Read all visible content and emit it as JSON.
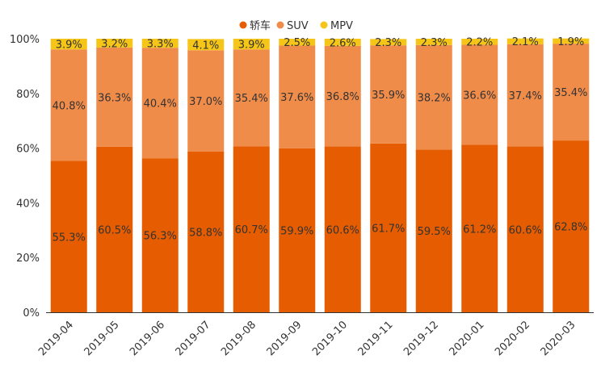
{
  "chart_data": {
    "type": "bar",
    "stacked": true,
    "percent": true,
    "title": "",
    "xlabel": "",
    "ylabel": "",
    "ylim": [
      0,
      100
    ],
    "yticks": [
      "0%",
      "20%",
      "40%",
      "60%",
      "80%",
      "100%"
    ],
    "categories": [
      "2019-04",
      "2019-05",
      "2019-06",
      "2019-07",
      "2019-08",
      "2019-09",
      "2019-10",
      "2019-11",
      "2019-12",
      "2020-01",
      "2020-02",
      "2020-03"
    ],
    "series": [
      {
        "name": "轿车",
        "color": "#e65c00",
        "values": [
          55.3,
          60.5,
          56.3,
          58.8,
          60.7,
          59.9,
          60.6,
          61.7,
          59.5,
          61.2,
          60.6,
          62.8
        ],
        "labels": [
          "55.3%",
          "60.5%",
          "56.3%",
          "58.8%",
          "60.7%",
          "59.9%",
          "60.6%",
          "61.7%",
          "59.5%",
          "61.2%",
          "60.6%",
          "62.8%"
        ]
      },
      {
        "name": "SUV",
        "color": "#f08c4a",
        "values": [
          40.8,
          36.3,
          40.4,
          37.0,
          35.4,
          37.6,
          36.8,
          35.9,
          38.2,
          36.6,
          37.4,
          35.4
        ],
        "labels": [
          "40.8%",
          "36.3%",
          "40.4%",
          "37.0%",
          "35.4%",
          "37.6%",
          "36.8%",
          "35.9%",
          "38.2%",
          "36.6%",
          "37.4%",
          "35.4%"
        ]
      },
      {
        "name": "MPV",
        "color": "#f5c518",
        "values": [
          3.9,
          3.2,
          3.3,
          4.1,
          3.9,
          2.5,
          2.6,
          2.3,
          2.3,
          2.2,
          2.1,
          1.9
        ],
        "labels": [
          "3.9%",
          "3.2%",
          "3.3%",
          "4.1%",
          "3.9%",
          "2.5%",
          "2.6%",
          "2.3%",
          "2.3%",
          "2.2%",
          "2.1%",
          "1.9%"
        ]
      }
    ],
    "legend": "top-center"
  }
}
